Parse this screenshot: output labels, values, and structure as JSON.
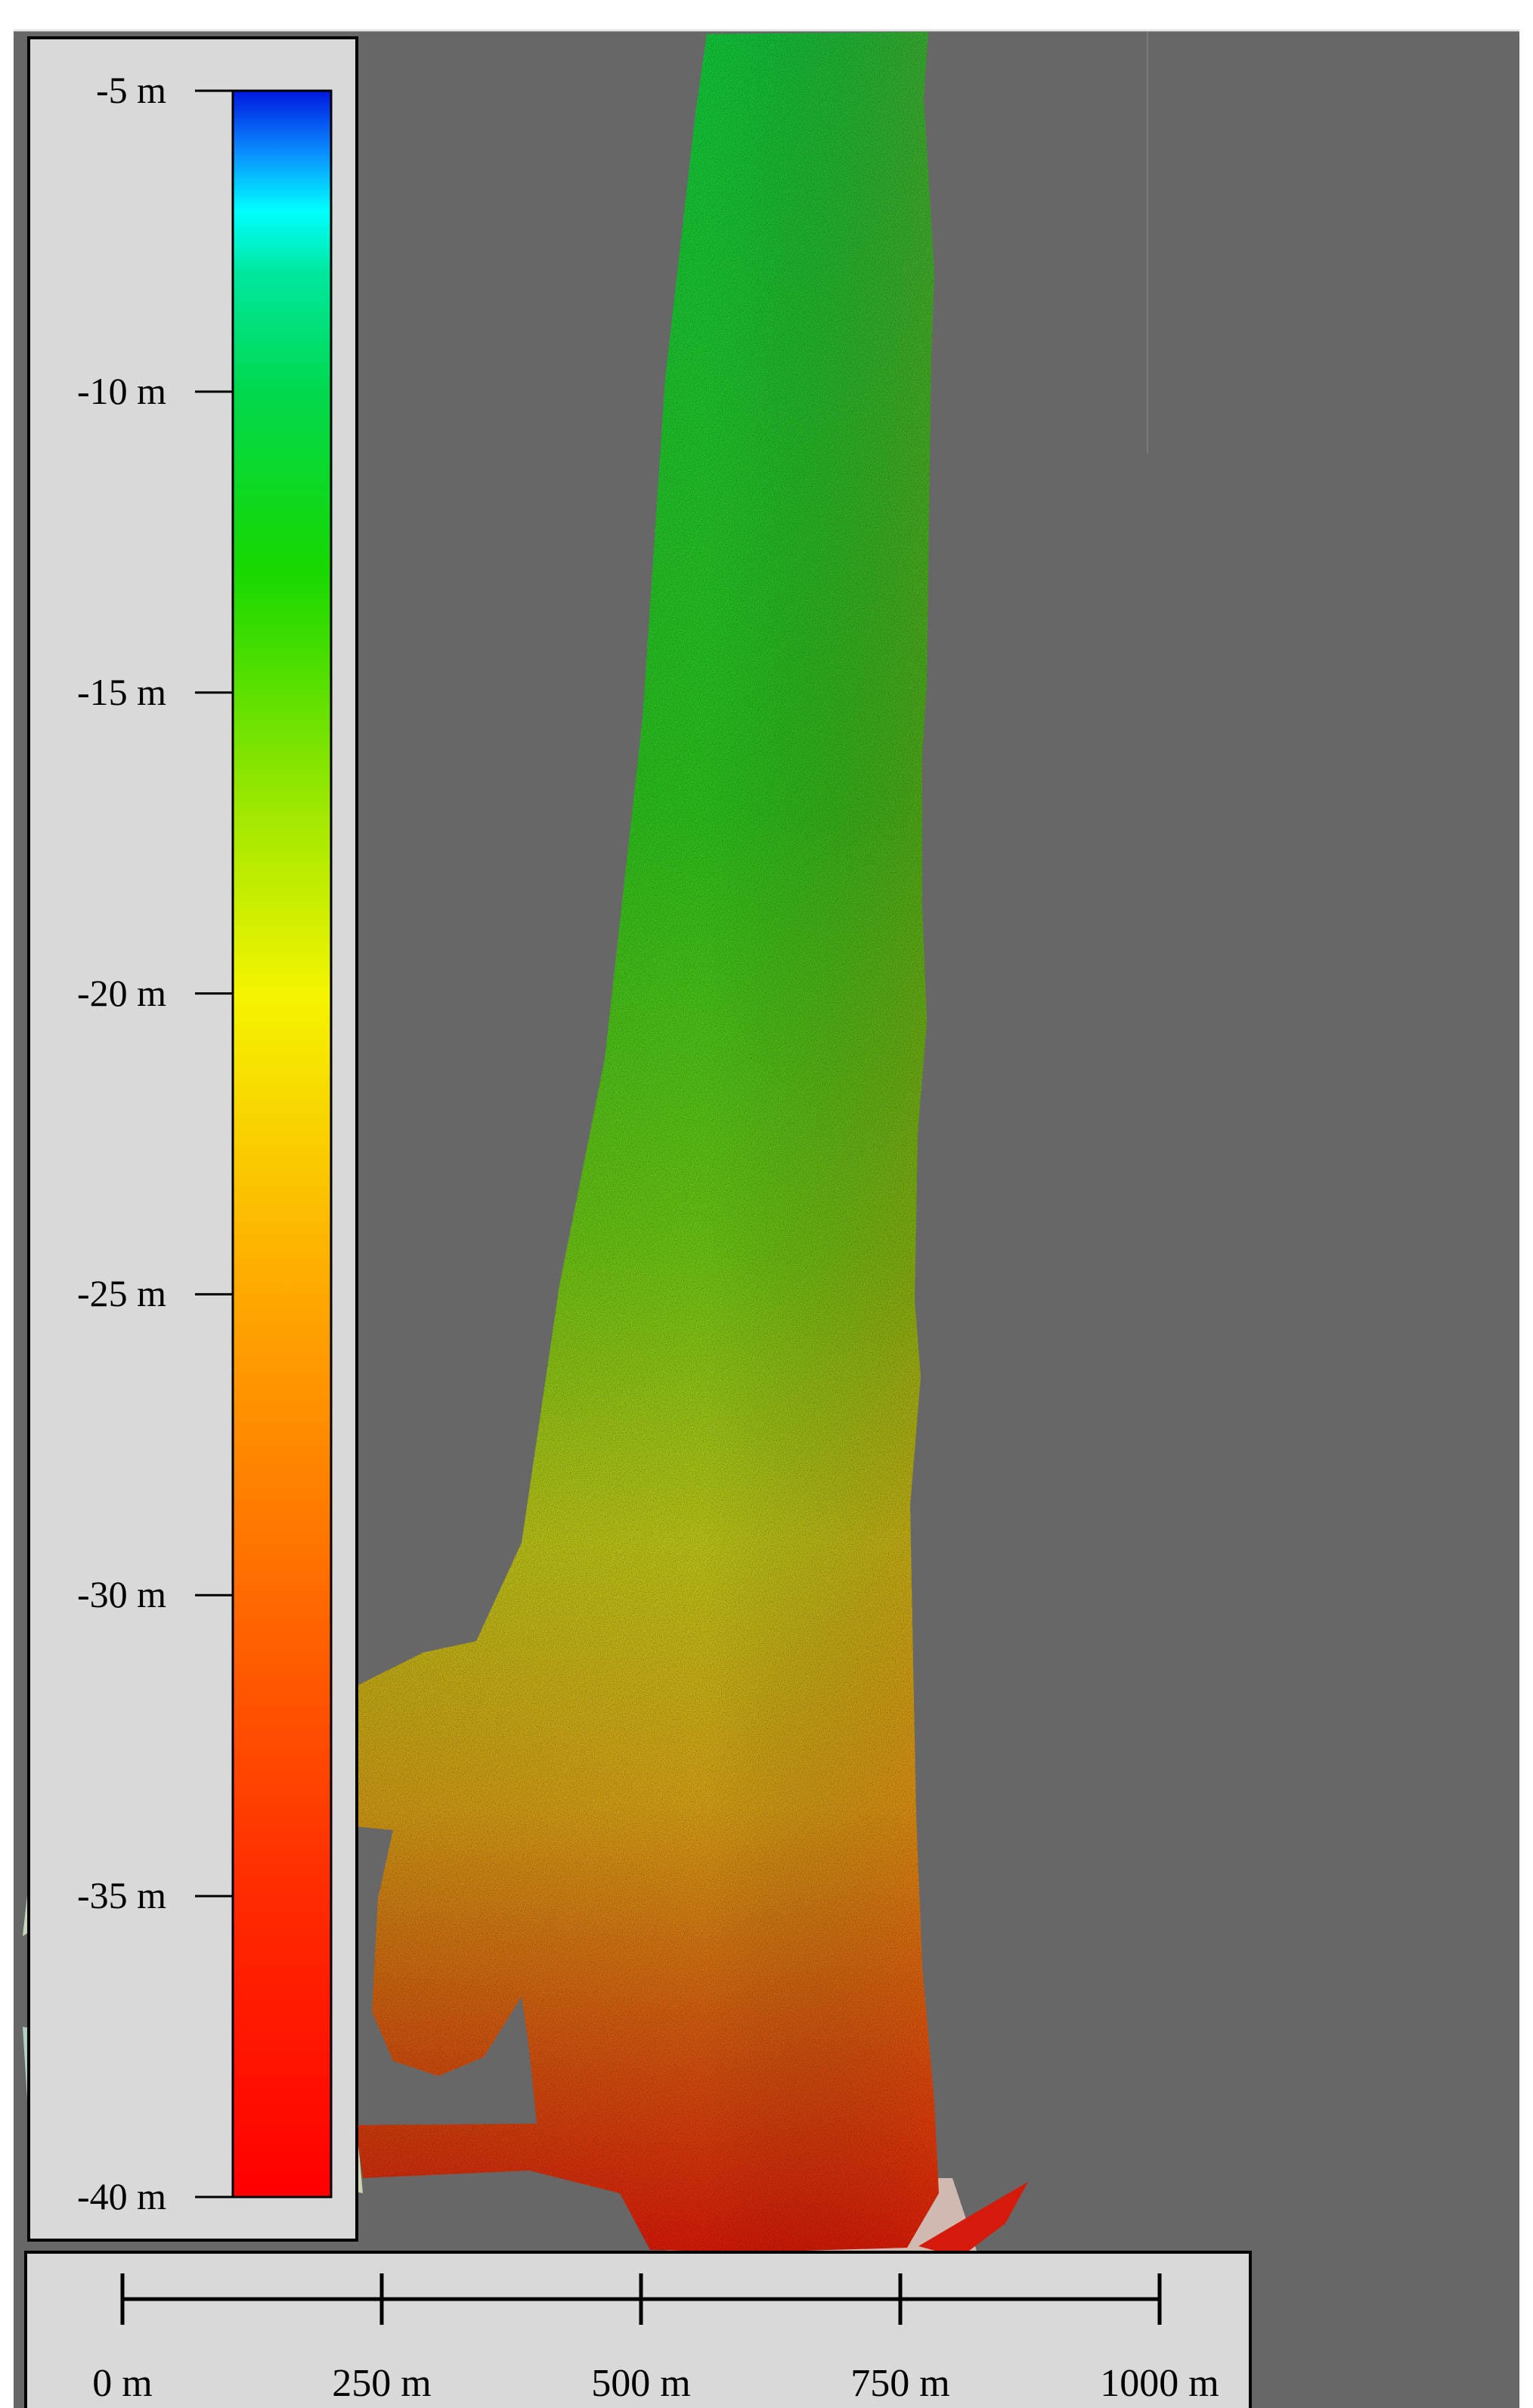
{
  "legend": {
    "colorbar_stops": [
      {
        "depth_m": -5,
        "color": "#0018e0"
      },
      {
        "depth_m": -6,
        "color": "#0a8cff"
      },
      {
        "depth_m": -7,
        "color": "#00ffff"
      },
      {
        "depth_m": -8,
        "color": "#00e8a0"
      },
      {
        "depth_m": -10,
        "color": "#00d84c"
      },
      {
        "depth_m": -13,
        "color": "#18d800"
      },
      {
        "depth_m": -17,
        "color": "#a0e800"
      },
      {
        "depth_m": -20,
        "color": "#f4f400"
      },
      {
        "depth_m": -25,
        "color": "#ffa800"
      },
      {
        "depth_m": -30,
        "color": "#ff6a00"
      },
      {
        "depth_m": -35,
        "color": "#ff2a00"
      },
      {
        "depth_m": -40,
        "color": "#ff0000"
      }
    ],
    "ticks": [
      {
        "value": -5,
        "label": "-5 m"
      },
      {
        "value": -10,
        "label": "-10 m"
      },
      {
        "value": -15,
        "label": "-15 m"
      },
      {
        "value": -20,
        "label": "-20 m"
      },
      {
        "value": -25,
        "label": "-25 m"
      },
      {
        "value": -30,
        "label": "-30 m"
      },
      {
        "value": -35,
        "label": "-35 m"
      },
      {
        "value": -40,
        "label": "-40 m"
      }
    ]
  },
  "scale_bar": {
    "ticks": [
      {
        "value": 0,
        "label": "0 m"
      },
      {
        "value": 250,
        "label": "250 m"
      },
      {
        "value": 500,
        "label": "500 m"
      },
      {
        "value": 750,
        "label": "750 m"
      },
      {
        "value": 1000,
        "label": "1000 m"
      }
    ]
  },
  "colors": {
    "map_background": "#676767",
    "panel_background": "#d9d9d9",
    "panel_border": "#000000"
  }
}
